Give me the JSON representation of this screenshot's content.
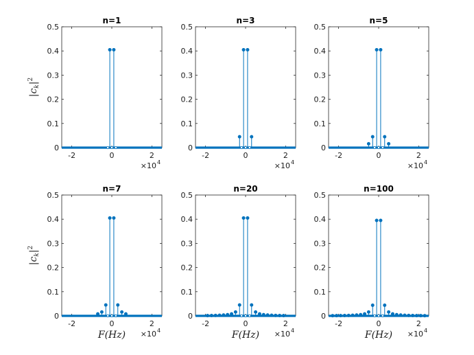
{
  "chart_data": [
    {
      "type": "stem",
      "title": "n=1",
      "xlabel": "",
      "ylabel": "|c_k|^2",
      "xlim": [
        -25000,
        25000
      ],
      "ylim": [
        0,
        0.5
      ],
      "x_ticks": [
        "-2",
        "0",
        "2"
      ],
      "y_ticks": [
        "0",
        "0.1",
        "0.2",
        "0.3",
        "0.4",
        "0.5"
      ],
      "x_multiplier": {
        "base": "×10",
        "exp": "4"
      },
      "fundamental_hz": 1000,
      "harmonics": [
        1
      ],
      "values": [
        0.405
      ]
    },
    {
      "type": "stem",
      "title": "n=3",
      "xlabel": "",
      "ylabel": "",
      "xlim": [
        -25000,
        25000
      ],
      "ylim": [
        0,
        0.5
      ],
      "x_ticks": [
        "-2",
        "0",
        "2"
      ],
      "y_ticks": [
        "0",
        "0.1",
        "0.2",
        "0.3",
        "0.4",
        "0.5"
      ],
      "x_multiplier": {
        "base": "×10",
        "exp": "4"
      },
      "fundamental_hz": 1000,
      "harmonics": [
        1,
        3
      ],
      "values": [
        0.405,
        0.045
      ]
    },
    {
      "type": "stem",
      "title": "n=5",
      "xlabel": "",
      "ylabel": "",
      "xlim": [
        -25000,
        25000
      ],
      "ylim": [
        0,
        0.5
      ],
      "x_ticks": [
        "-2",
        "0",
        "2"
      ],
      "y_ticks": [
        "0",
        "0.1",
        "0.2",
        "0.3",
        "0.4",
        "0.5"
      ],
      "x_multiplier": {
        "base": "×10",
        "exp": "4"
      },
      "fundamental_hz": 1000,
      "harmonics": [
        1,
        3,
        5
      ],
      "values": [
        0.405,
        0.045,
        0.016
      ]
    },
    {
      "type": "stem",
      "title": "n=7",
      "xlabel": "F(Hz)",
      "ylabel": "|c_k|^2",
      "xlim": [
        -25000,
        25000
      ],
      "ylim": [
        0,
        0.5
      ],
      "x_ticks": [
        "-2",
        "0",
        "2"
      ],
      "y_ticks": [
        "0",
        "0.1",
        "0.2",
        "0.3",
        "0.4",
        "0.5"
      ],
      "x_multiplier": {
        "base": "×10",
        "exp": "4"
      },
      "fundamental_hz": 1000,
      "harmonics": [
        1,
        3,
        5,
        7
      ],
      "values": [
        0.405,
        0.045,
        0.016,
        0.008
      ]
    },
    {
      "type": "stem",
      "title": "n=20",
      "xlabel": "F(Hz)",
      "ylabel": "",
      "xlim": [
        -25000,
        25000
      ],
      "ylim": [
        0,
        0.5
      ],
      "x_ticks": [
        "-2",
        "0",
        "2"
      ],
      "y_ticks": [
        "0",
        "0.1",
        "0.2",
        "0.3",
        "0.4",
        "0.5"
      ],
      "x_multiplier": {
        "base": "×10",
        "exp": "4"
      },
      "fundamental_hz": 1000,
      "harmonics": [
        1,
        3,
        5,
        7,
        9,
        11,
        13,
        15,
        17,
        19
      ],
      "values": [
        0.405,
        0.045,
        0.016,
        0.008,
        0.005,
        0.0034,
        0.0024,
        0.0018,
        0.0014,
        0.0011
      ]
    },
    {
      "type": "stem",
      "title": "n=100",
      "xlabel": "F(Hz)",
      "ylabel": "",
      "xlim": [
        -25000,
        25000
      ],
      "ylim": [
        0,
        0.5
      ],
      "x_ticks": [
        "-2",
        "0",
        "2"
      ],
      "y_ticks": [
        "0",
        "0.1",
        "0.2",
        "0.3",
        "0.4",
        "0.5"
      ],
      "x_multiplier": {
        "base": "×10",
        "exp": "4"
      },
      "fundamental_hz": 1000,
      "harmonics": [
        1,
        3,
        5,
        7,
        9,
        11,
        13,
        15,
        17,
        19,
        21,
        23
      ],
      "values": [
        0.395,
        0.044,
        0.016,
        0.008,
        0.005,
        0.0034,
        0.0024,
        0.0018,
        0.0014,
        0.0011,
        0.0009,
        0.0008
      ]
    }
  ],
  "colors": {
    "stem": "#0072bd",
    "axes": "#262626"
  }
}
